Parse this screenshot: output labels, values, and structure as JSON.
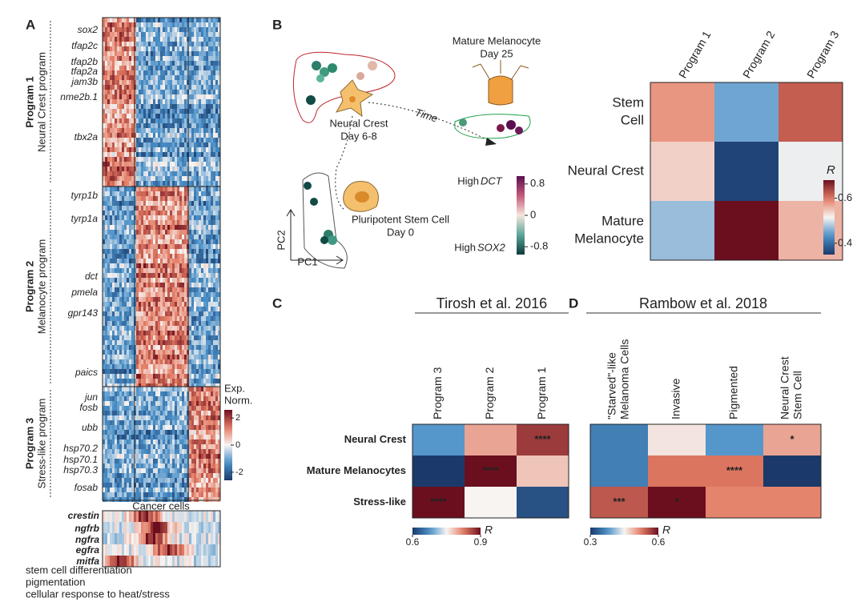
{
  "panel_labels": [
    "A",
    "B",
    "C",
    "D"
  ],
  "panel_a": {
    "groups": [
      {
        "name": "Program 1",
        "subtitle": "Neural Crest program",
        "color": "#e6d38a",
        "genes": [
          "sox2",
          "tfap2c",
          "tfap2b",
          "tfap2a",
          "jam3b",
          "nme2b.1",
          "tbx2a"
        ]
      },
      {
        "name": "Program 2",
        "subtitle": "Melanocyte program",
        "color": "#45c3dc",
        "genes": [
          "tyrp1b",
          "tyrp1a",
          "dct",
          "pmela",
          "gpr143",
          "paics"
        ]
      },
      {
        "name": "Program 3",
        "subtitle": "Stress-like program",
        "color": "#8a4f86",
        "genes": [
          "jun",
          "fosb",
          "ubb",
          "hsp70.2",
          "hsp70.1",
          "hsp70.3",
          "fosab"
        ]
      }
    ],
    "colorbar": {
      "title": [
        "Exp.",
        "Norm."
      ],
      "lim": [
        -2.6,
        2.6
      ],
      "ticks": [
        2,
        0,
        -2
      ]
    },
    "xlabel": "Cancer cells",
    "markers": [
      "crestin",
      "ngfrb",
      "ngfra",
      "egfra",
      "mitfa"
    ],
    "go_terms": [
      "stem cell differentiation",
      "pigmentation",
      "cellular response to heat/stress"
    ]
  },
  "panel_b": {
    "diagram": {
      "mature": "Mature Melanocyte",
      "mature_day": "Day 25",
      "crest": "Neural Crest",
      "crest_day": "Day 6-8",
      "stem": "Pluripotent Stem Cell",
      "stem_day": "Day 0",
      "time": "Time",
      "pc1": "PC1",
      "pc2": "PC2",
      "high_top": "High",
      "gene_top": "DCT",
      "high_bottom": "High",
      "gene_bottom": "SOX2",
      "colorbar_lim": [
        -1,
        1
      ],
      "colorbar_ticks": [
        0.8,
        0,
        -0.8
      ]
    },
    "heatmap": {
      "columns": [
        "Program 1",
        "Program 2",
        "Program 3"
      ],
      "rows": [
        [
          "Stem",
          "Cell"
        ],
        [
          "Neural Crest"
        ],
        [
          "Mature",
          "Melanocyte"
        ]
      ],
      "row_colors": [
        "#8c8c8c",
        "#c0262d",
        "#1fa04a"
      ],
      "values": [
        [
          0.58,
          0.45,
          0.62
        ],
        [
          0.54,
          0.36,
          0.51
        ],
        [
          0.47,
          0.68,
          0.56
        ]
      ],
      "lim": [
        0.35,
        0.68
      ],
      "ticks": [
        0.6,
        0.4
      ],
      "colorbar_label": "R"
    }
  },
  "panel_c": {
    "title": "Tirosh et al. 2016",
    "columns": [
      "Program 3",
      "Program 2",
      "Program 1"
    ],
    "rows": [
      "Neural Crest",
      "Mature Melanocytes",
      "Stress-like"
    ],
    "row_colors": [
      "#e6d38a",
      "#45c3dc",
      "#8a4f86"
    ],
    "values": [
      [
        0.68,
        0.8,
        0.87
      ],
      [
        0.6,
        0.9,
        0.78
      ],
      [
        0.9,
        0.75,
        0.62
      ]
    ],
    "stars": [
      [
        null,
        null,
        "****"
      ],
      [
        null,
        "****",
        null
      ],
      [
        "****",
        null,
        null
      ]
    ],
    "lim": [
      0.6,
      0.9
    ],
    "ticks": [
      0.6,
      0.9
    ],
    "colorbar_label": "R"
  },
  "panel_d": {
    "title": "Rambow et al. 2018",
    "columns": [
      [
        "\"Starved\"-like",
        "Melanoma Cells"
      ],
      [
        "Invasive"
      ],
      [
        "Pigmented"
      ],
      [
        "Neural Crest",
        "Stem Cell"
      ]
    ],
    "values": [
      [
        0.36,
        0.46,
        0.38,
        0.5
      ],
      [
        0.36,
        0.53,
        0.53,
        0.3
      ],
      [
        0.55,
        0.6,
        0.52,
        0.52
      ]
    ],
    "stars": [
      [
        null,
        null,
        null,
        "*"
      ],
      [
        null,
        null,
        "****",
        null
      ],
      [
        "***",
        "*",
        null,
        null
      ]
    ],
    "lim": [
      0.3,
      0.6
    ],
    "ticks": [
      0.3,
      0.6
    ],
    "colorbar_label": "R"
  }
}
